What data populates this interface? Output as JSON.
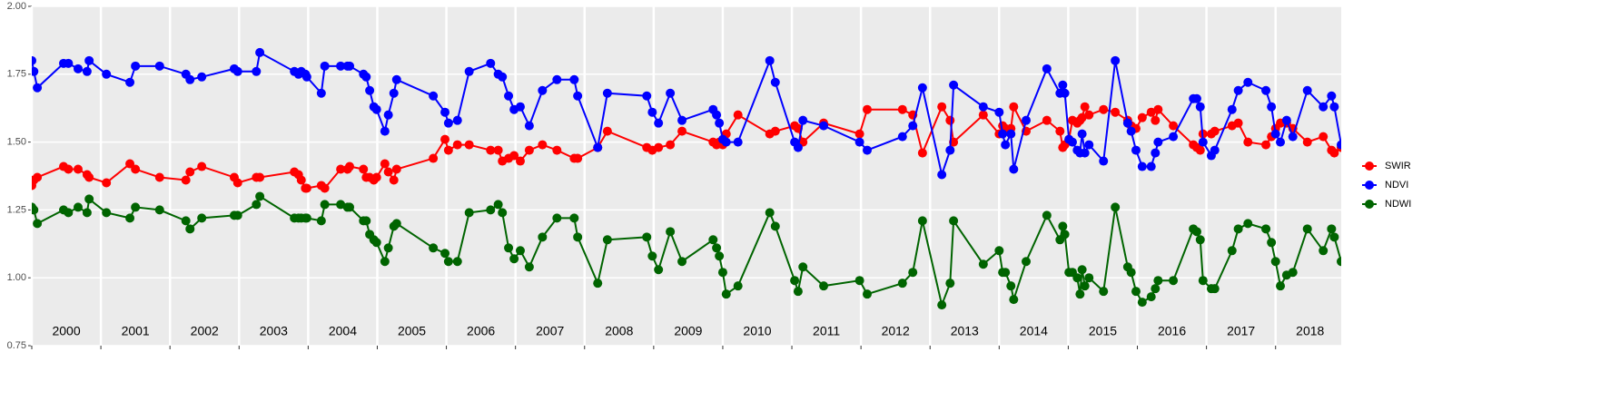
{
  "chart_data": {
    "type": "line",
    "x": [
      2000.0,
      2000.03,
      2000.08,
      2000.46,
      2000.53,
      2000.67,
      2000.8,
      2000.83,
      2001.08,
      2001.42,
      2001.5,
      2001.85,
      2002.23,
      2002.29,
      2002.46,
      2002.93,
      2002.98,
      2003.25,
      2003.3,
      2003.8,
      2003.86,
      2003.9,
      2003.96,
      2003.98,
      2004.19,
      2004.24,
      2004.47,
      2004.57,
      2004.6,
      2004.8,
      2004.84,
      2004.89,
      2004.95,
      2004.99,
      2005.11,
      2005.16,
      2005.24,
      2005.28,
      2005.81,
      2005.98,
      2006.03,
      2006.16,
      2006.33,
      2006.64,
      2006.75,
      2006.81,
      2006.9,
      2006.98,
      2007.07,
      2007.2,
      2007.39,
      2007.6,
      2007.85,
      2007.9,
      2008.19,
      2008.33,
      2008.9,
      2008.98,
      2009.07,
      2009.24,
      2009.41,
      2009.86,
      2009.91,
      2009.95,
      2010.0,
      2010.05,
      2010.22,
      2010.68,
      2010.76,
      2011.04,
      2011.09,
      2011.16,
      2011.46,
      2011.98,
      2012.09,
      2012.6,
      2012.75,
      2012.89,
      2013.17,
      2013.29,
      2013.34,
      2013.77,
      2014.0,
      2014.05,
      2014.09,
      2014.17,
      2014.21,
      2014.39,
      2014.69,
      2014.88,
      2014.92,
      2014.95,
      2015.01,
      2015.06,
      2015.13,
      2015.17,
      2015.2,
      2015.24,
      2015.3,
      2015.51,
      2015.68,
      2015.86,
      2015.91,
      2015.98,
      2016.07,
      2016.2,
      2016.26,
      2016.3,
      2016.52,
      2016.81,
      2016.86,
      2016.91,
      2016.95,
      2017.07,
      2017.12,
      2017.37,
      2017.46,
      2017.6,
      2017.86,
      2017.94,
      2018.0,
      2018.07,
      2018.16,
      2018.25,
      2018.46,
      2018.69,
      2018.81,
      2018.85,
      2018.95
    ],
    "series": [
      {
        "name": "SWIR",
        "color": "#ff0000",
        "values": [
          1.34,
          1.36,
          1.37,
          1.41,
          1.4,
          1.4,
          1.38,
          1.37,
          1.35,
          1.42,
          1.4,
          1.37,
          1.36,
          1.39,
          1.41,
          1.37,
          1.35,
          1.37,
          1.37,
          1.39,
          1.38,
          1.36,
          1.33,
          1.33,
          1.34,
          1.33,
          1.4,
          1.4,
          1.41,
          1.4,
          1.37,
          1.37,
          1.36,
          1.37,
          1.42,
          1.39,
          1.36,
          1.4,
          1.44,
          1.51,
          1.47,
          1.49,
          1.49,
          1.47,
          1.47,
          1.43,
          1.44,
          1.45,
          1.43,
          1.47,
          1.49,
          1.47,
          1.44,
          1.44,
          1.48,
          1.54,
          1.48,
          1.47,
          1.48,
          1.49,
          1.54,
          1.5,
          1.49,
          1.5,
          1.49,
          1.53,
          1.6,
          1.53,
          1.54,
          1.56,
          1.55,
          1.5,
          1.57,
          1.53,
          1.62,
          1.62,
          1.6,
          1.46,
          1.63,
          1.58,
          1.5,
          1.6,
          1.53,
          1.56,
          1.55,
          1.55,
          1.63,
          1.54,
          1.58,
          1.54,
          1.48,
          1.49,
          1.51,
          1.58,
          1.57,
          1.58,
          1.59,
          1.63,
          1.6,
          1.62,
          1.61,
          1.58,
          1.56,
          1.55,
          1.59,
          1.61,
          1.58,
          1.62,
          1.56,
          1.49,
          1.48,
          1.47,
          1.53,
          1.53,
          1.54,
          1.56,
          1.57,
          1.5,
          1.49,
          1.52,
          1.55,
          1.57,
          1.57,
          1.55,
          1.5,
          1.52,
          1.47,
          1.46,
          1.48
        ]
      },
      {
        "name": "NDVI",
        "color": "#0000ff",
        "values": [
          1.8,
          1.76,
          1.7,
          1.79,
          1.79,
          1.77,
          1.76,
          1.8,
          1.75,
          1.72,
          1.78,
          1.78,
          1.75,
          1.73,
          1.74,
          1.77,
          1.76,
          1.76,
          1.83,
          1.76,
          1.75,
          1.76,
          1.75,
          1.74,
          1.68,
          1.78,
          1.78,
          1.78,
          1.78,
          1.75,
          1.74,
          1.69,
          1.63,
          1.62,
          1.54,
          1.6,
          1.68,
          1.73,
          1.67,
          1.61,
          1.57,
          1.58,
          1.76,
          1.79,
          1.75,
          1.74,
          1.67,
          1.62,
          1.63,
          1.56,
          1.69,
          1.73,
          1.73,
          1.67,
          1.48,
          1.68,
          1.67,
          1.61,
          1.57,
          1.68,
          1.58,
          1.62,
          1.6,
          1.57,
          1.51,
          1.5,
          1.5,
          1.8,
          1.72,
          1.5,
          1.48,
          1.58,
          1.56,
          1.5,
          1.47,
          1.52,
          1.56,
          1.7,
          1.38,
          1.47,
          1.71,
          1.63,
          1.61,
          1.53,
          1.49,
          1.53,
          1.4,
          1.58,
          1.77,
          1.68,
          1.71,
          1.68,
          1.51,
          1.5,
          1.47,
          1.46,
          1.53,
          1.46,
          1.49,
          1.43,
          1.8,
          1.57,
          1.54,
          1.47,
          1.41,
          1.41,
          1.46,
          1.5,
          1.52,
          1.66,
          1.66,
          1.63,
          1.5,
          1.45,
          1.47,
          1.62,
          1.69,
          1.72,
          1.69,
          1.63,
          1.53,
          1.5,
          1.58,
          1.52,
          1.69,
          1.63,
          1.67,
          1.63,
          1.49
        ]
      },
      {
        "name": "NDWI",
        "color": "#006400",
        "values": [
          1.26,
          1.25,
          1.2,
          1.25,
          1.24,
          1.26,
          1.24,
          1.29,
          1.24,
          1.22,
          1.26,
          1.25,
          1.21,
          1.18,
          1.22,
          1.23,
          1.23,
          1.27,
          1.3,
          1.22,
          1.22,
          1.22,
          1.22,
          1.22,
          1.21,
          1.27,
          1.27,
          1.26,
          1.26,
          1.21,
          1.21,
          1.16,
          1.14,
          1.13,
          1.06,
          1.11,
          1.19,
          1.2,
          1.11,
          1.09,
          1.06,
          1.06,
          1.24,
          1.25,
          1.27,
          1.24,
          1.11,
          1.07,
          1.1,
          1.04,
          1.15,
          1.22,
          1.22,
          1.15,
          0.98,
          1.14,
          1.15,
          1.08,
          1.03,
          1.17,
          1.06,
          1.14,
          1.11,
          1.08,
          1.02,
          0.94,
          0.97,
          1.24,
          1.19,
          0.99,
          0.95,
          1.04,
          0.97,
          0.99,
          0.94,
          0.98,
          1.02,
          1.21,
          0.9,
          0.98,
          1.21,
          1.05,
          1.1,
          1.02,
          1.02,
          0.97,
          0.92,
          1.06,
          1.23,
          1.14,
          1.19,
          1.16,
          1.02,
          1.02,
          1.0,
          0.94,
          1.03,
          0.97,
          1.0,
          0.95,
          1.26,
          1.04,
          1.02,
          0.95,
          0.91,
          0.93,
          0.96,
          0.99,
          0.99,
          1.18,
          1.17,
          1.14,
          0.99,
          0.96,
          0.96,
          1.1,
          1.18,
          1.2,
          1.18,
          1.13,
          1.06,
          0.97,
          1.01,
          1.02,
          1.18,
          1.1,
          1.18,
          1.15,
          1.06
        ]
      }
    ],
    "xlim": [
      2000,
      2018.95
    ],
    "xticks": [
      2000,
      2001,
      2002,
      2003,
      2004,
      2005,
      2006,
      2007,
      2008,
      2009,
      2010,
      2011,
      2012,
      2013,
      2014,
      2015,
      2016,
      2017,
      2018
    ],
    "ylim": [
      0.75,
      2.0
    ],
    "yticks": [
      {
        "value": 0.75,
        "label": "0.75"
      },
      {
        "value": 1.0,
        "label": "1.00"
      },
      {
        "value": 1.25,
        "label": "1.25"
      },
      {
        "value": 1.5,
        "label": "1.50"
      },
      {
        "value": 1.75,
        "label": "1.75"
      },
      {
        "value": 2.0,
        "label": "2.00"
      }
    ],
    "grid": true,
    "legend": "right"
  }
}
